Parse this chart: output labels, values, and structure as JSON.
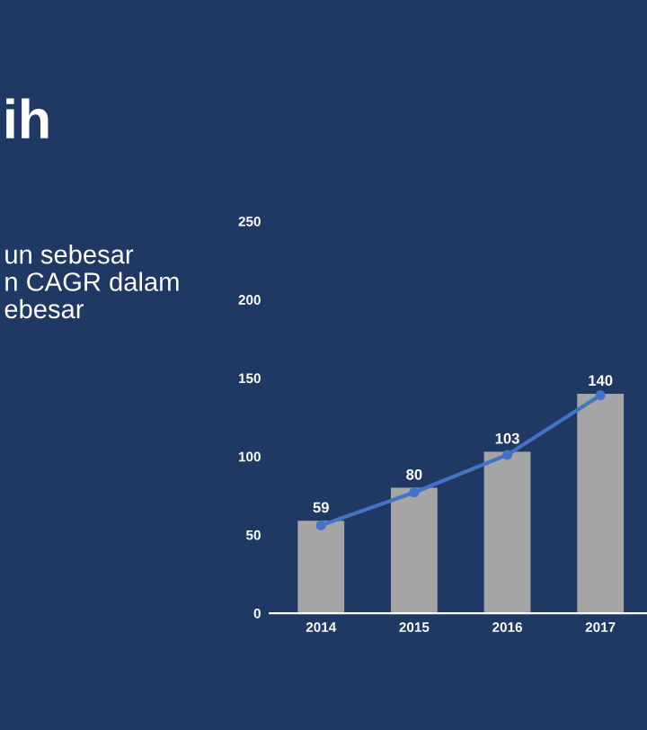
{
  "chart_data": {
    "type": "bar",
    "title": "ih",
    "annotations": [
      "un sebesar\nn CAGR dalam\nebesar"
    ],
    "categories": [
      "2014",
      "2015",
      "2016",
      "2017"
    ],
    "series": [
      {
        "color": "#a5a5a5",
        "values": [
          59,
          80,
          103,
          140
        ],
        "value_labels": [
          "59",
          "80",
          "103",
          "140"
        ]
      },
      {
        "type": "line",
        "color": "#4472c4",
        "values": [
          56,
          77,
          101,
          139
        ],
        "marker": "circle"
      }
    ],
    "ylim": [
      0,
      250
    ],
    "yticks": [
      0,
      50,
      100,
      150,
      200,
      250
    ],
    "grid": false,
    "legend": false
  }
}
